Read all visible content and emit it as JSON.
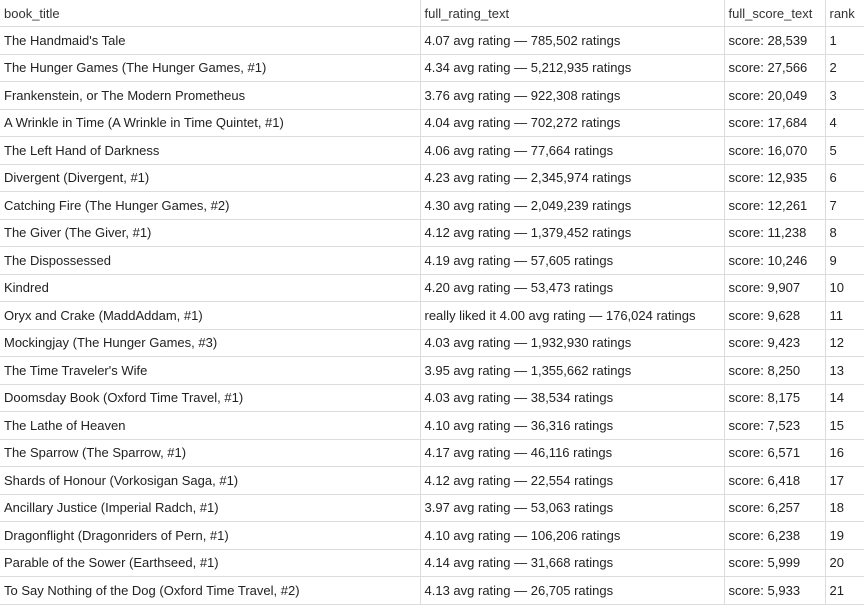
{
  "columns": [
    "book_title",
    "full_rating_text",
    "full_score_text",
    "rank"
  ],
  "rows": [
    {
      "title": "The Handmaid's Tale",
      "rating": "4.07 avg rating — 785,502 ratings",
      "score": "score: 28,539",
      "rank": "1"
    },
    {
      "title": "The Hunger Games (The Hunger Games, #1)",
      "rating": "4.34 avg rating — 5,212,935 ratings",
      "score": "score: 27,566",
      "rank": "2"
    },
    {
      "title": "Frankenstein, or The Modern Prometheus",
      "rating": "3.76 avg rating — 922,308 ratings",
      "score": "score: 20,049",
      "rank": "3"
    },
    {
      "title": "A Wrinkle in Time (A Wrinkle in Time Quintet, #1)",
      "rating": "4.04 avg rating — 702,272 ratings",
      "score": "score: 17,684",
      "rank": "4"
    },
    {
      "title": "The Left Hand of Darkness",
      "rating": "4.06 avg rating — 77,664 ratings",
      "score": "score: 16,070",
      "rank": "5"
    },
    {
      "title": "Divergent (Divergent, #1)",
      "rating": "4.23 avg rating — 2,345,974 ratings",
      "score": "score: 12,935",
      "rank": "6"
    },
    {
      "title": "Catching Fire (The Hunger Games, #2)",
      "rating": "4.30 avg rating — 2,049,239 ratings",
      "score": "score: 12,261",
      "rank": "7"
    },
    {
      "title": "The Giver (The Giver, #1)",
      "rating": "4.12 avg rating — 1,379,452 ratings",
      "score": "score: 11,238",
      "rank": "8"
    },
    {
      "title": "The Dispossessed",
      "rating": "4.19 avg rating — 57,605 ratings",
      "score": "score: 10,246",
      "rank": "9"
    },
    {
      "title": "Kindred",
      "rating": "4.20 avg rating — 53,473 ratings",
      "score": "score: 9,907",
      "rank": "10"
    },
    {
      "title": "Oryx and Crake (MaddAddam, #1)",
      "rating": "really liked it 4.00 avg rating — 176,024 ratings",
      "score": "score: 9,628",
      "rank": "11"
    },
    {
      "title": "Mockingjay (The Hunger Games, #3)",
      "rating": "4.03 avg rating — 1,932,930 ratings",
      "score": "score: 9,423",
      "rank": "12"
    },
    {
      "title": "The Time Traveler's Wife",
      "rating": "3.95 avg rating — 1,355,662 ratings",
      "score": "score: 8,250",
      "rank": "13"
    },
    {
      "title": "Doomsday Book (Oxford Time Travel, #1)",
      "rating": "4.03 avg rating — 38,534 ratings",
      "score": "score: 8,175",
      "rank": "14"
    },
    {
      "title": "The Lathe of Heaven",
      "rating": "4.10 avg rating — 36,316 ratings",
      "score": "score: 7,523",
      "rank": "15"
    },
    {
      "title": "The Sparrow (The Sparrow, #1)",
      "rating": "4.17 avg rating — 46,116 ratings",
      "score": "score: 6,571",
      "rank": "16"
    },
    {
      "title": "Shards of Honour  (Vorkosigan Saga, #1)",
      "rating": "4.12 avg rating — 22,554 ratings",
      "score": "score: 6,418",
      "rank": "17"
    },
    {
      "title": "Ancillary Justice (Imperial Radch, #1)",
      "rating": "3.97 avg rating — 53,063 ratings",
      "score": "score: 6,257",
      "rank": "18"
    },
    {
      "title": "Dragonflight (Dragonriders of Pern, #1)",
      "rating": "4.10 avg rating — 106,206 ratings",
      "score": "score: 6,238",
      "rank": "19"
    },
    {
      "title": "Parable of the Sower (Earthseed, #1)",
      "rating": "4.14 avg rating — 31,668 ratings",
      "score": "score: 5,999",
      "rank": "20"
    },
    {
      "title": "To Say Nothing of the Dog (Oxford Time Travel, #2)",
      "rating": "4.13 avg rating — 26,705 ratings",
      "score": "score: 5,933",
      "rank": "21"
    }
  ]
}
